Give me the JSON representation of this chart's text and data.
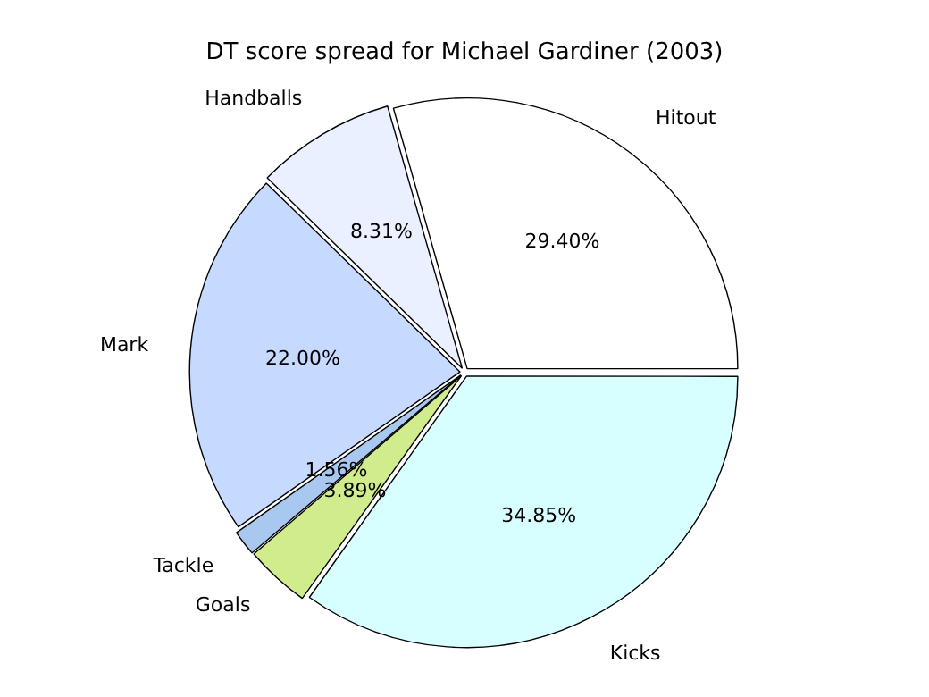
{
  "chart_data": {
    "type": "pie",
    "title": "DT score spread for Michael Gardiner (2003)",
    "categories": [
      "Kicks",
      "Goals",
      "Tackle",
      "Mark",
      "Handballs",
      "Hitout"
    ],
    "values": [
      34.85,
      3.89,
      1.56,
      22.0,
      8.31,
      29.4
    ],
    "colors": [
      "#d8ffff",
      "#d0ec8c",
      "#a8c8f0",
      "#c6d9ff",
      "#eaf0ff",
      "#ffffff"
    ],
    "value_labels": [
      "34.85%",
      "3.89%",
      "1.56%",
      "22.00%",
      "8.31%",
      "29.40%"
    ],
    "legend": false
  }
}
